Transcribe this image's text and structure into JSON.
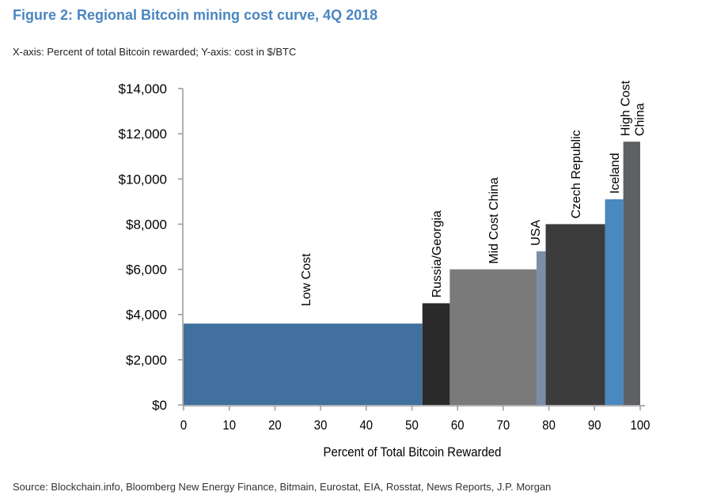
{
  "header": {
    "title": "Figure 2: Regional Bitcoin mining cost curve, 4Q 2018",
    "subtitle": "X-axis: Percent of total Bitcoin rewarded; Y-axis: cost in $/BTC"
  },
  "footer": {
    "source": "Source: Blockchain.info, Bloomberg New Energy Finance, Bitmain, Eurostat, EIA, Rosstat, News Reports, J.P. Morgan"
  },
  "chart_data": {
    "type": "bar",
    "subtype": "variable-width cost curve",
    "title": "Figure 2: Regional Bitcoin mining cost curve, 4Q 2018",
    "xlabel": "Percent of Total Bitcoin Rewarded",
    "ylabel": "cost in $/BTC",
    "xlim": [
      0,
      100
    ],
    "ylim": [
      0,
      14000
    ],
    "x_ticks": [
      0,
      10,
      20,
      30,
      40,
      50,
      60,
      70,
      80,
      90,
      100
    ],
    "x_tick_labels": [
      "0",
      "10",
      "20",
      "30",
      "40",
      "50",
      "60",
      "70",
      "80",
      "90",
      "100"
    ],
    "y_ticks": [
      0,
      2000,
      4000,
      6000,
      8000,
      10000,
      12000,
      14000
    ],
    "y_tick_labels": [
      "$0",
      "$2,000",
      "$4,000",
      "$6,000",
      "$8,000",
      "$10,000",
      "$12,000",
      "$14,000"
    ],
    "grid": false,
    "legend": "none",
    "segments": [
      {
        "name": "Low Cost",
        "label_lines": [
          "Low Cost"
        ],
        "x_start": 0,
        "x_end": 52.3,
        "value": 3600,
        "color": "#41709e"
      },
      {
        "name": "Russia/Georgia",
        "label_lines": [
          "Russia/Georgia"
        ],
        "x_start": 52.3,
        "x_end": 58.3,
        "value": 4500,
        "color": "#2a2a2a"
      },
      {
        "name": "Mid Cost China",
        "label_lines": [
          "Mid Cost China"
        ],
        "x_start": 58.3,
        "x_end": 77.3,
        "value": 6000,
        "color": "#7a7a7a"
      },
      {
        "name": "USA",
        "label_lines": [
          "USA"
        ],
        "x_start": 77.3,
        "x_end": 79.3,
        "value": 6800,
        "color": "#7a8ea8"
      },
      {
        "name": "Czech Republic",
        "label_lines": [
          "Czech Republic"
        ],
        "x_start": 79.3,
        "x_end": 92.3,
        "value": 8000,
        "color": "#3c3c3c"
      },
      {
        "name": "Iceland",
        "label_lines": [
          "Iceland"
        ],
        "x_start": 92.3,
        "x_end": 96.3,
        "value": 9100,
        "color": "#4a88c0"
      },
      {
        "name": "High Cost China",
        "label_lines": [
          "High Cost",
          "China"
        ],
        "x_start": 96.3,
        "x_end": 100,
        "value": 11650,
        "color": "#5f6064"
      }
    ]
  }
}
